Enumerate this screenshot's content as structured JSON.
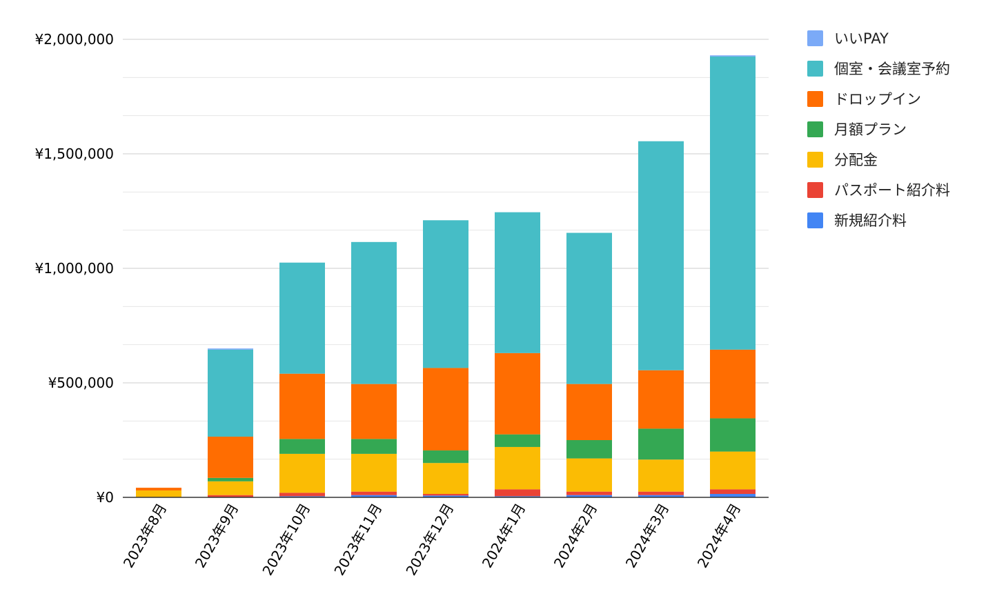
{
  "chart_data": {
    "type": "bar",
    "stacked": true,
    "categories": [
      "2023年8月",
      "2023年9月",
      "2023年10月",
      "2023年11月",
      "2023年12月",
      "2024年1月",
      "2024年2月",
      "2024年3月",
      "2024年4月"
    ],
    "ylim": [
      0,
      2000000
    ],
    "yticks": [
      {
        "value": 0,
        "label": "¥0"
      },
      {
        "value": 500000,
        "label": "¥500,000"
      },
      {
        "value": 1000000,
        "label": "¥1,000,000"
      },
      {
        "value": 1500000,
        "label": "¥1,500,000"
      },
      {
        "value": 2000000,
        "label": "¥2,000,000"
      }
    ],
    "grid": true,
    "legend_position": "right",
    "series": [
      {
        "name": "新規紹介料",
        "color": "#4285f4",
        "values": [
          0,
          0,
          5000,
          10000,
          8000,
          5000,
          10000,
          10000,
          15000
        ]
      },
      {
        "name": "パスポート紹介料",
        "color": "#ea4335",
        "values": [
          0,
          10000,
          15000,
          15000,
          7000,
          30000,
          15000,
          15000,
          20000
        ]
      },
      {
        "name": "分配金",
        "color": "#fbbc04",
        "values": [
          30000,
          60000,
          170000,
          165000,
          135000,
          185000,
          145000,
          140000,
          165000
        ]
      },
      {
        "name": "月額プラン",
        "color": "#34a853",
        "values": [
          0,
          15000,
          65000,
          65000,
          55000,
          55000,
          80000,
          135000,
          145000
        ]
      },
      {
        "name": "ドロップイン",
        "color": "#ff6d01",
        "values": [
          12000,
          180000,
          285000,
          240000,
          360000,
          355000,
          245000,
          255000,
          300000
        ]
      },
      {
        "name": "個室・会議室予約",
        "color": "#46bdc6",
        "values": [
          0,
          380000,
          485000,
          620000,
          645000,
          615000,
          660000,
          1000000,
          1280000
        ]
      },
      {
        "name": "いいPAY",
        "color": "#7baaf7",
        "values": [
          0,
          5000,
          0,
          0,
          0,
          0,
          0,
          0,
          5000
        ]
      }
    ],
    "legend_order": [
      "いいPAY",
      "個室・会議室予約",
      "ドロップイン",
      "月額プラン",
      "分配金",
      "パスポート紹介料",
      "新規紹介料"
    ]
  }
}
